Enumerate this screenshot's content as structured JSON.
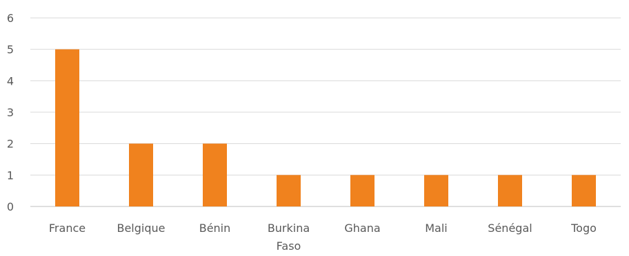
{
  "chart_data": {
    "type": "bar",
    "title": "",
    "xlabel": "",
    "ylabel": "",
    "categories": [
      "France",
      "Belgique",
      "Bénin",
      "Burkina Faso",
      "Ghana",
      "Mali",
      "Sénégal",
      "Togo"
    ],
    "values": [
      5,
      2,
      2,
      1,
      1,
      1,
      1,
      1
    ],
    "ylim": [
      0,
      6
    ],
    "yticks": [
      "0",
      "1",
      "2",
      "3",
      "4",
      "5",
      "6"
    ],
    "grid": true,
    "legend": "none",
    "bar_color": "#f0821e"
  }
}
